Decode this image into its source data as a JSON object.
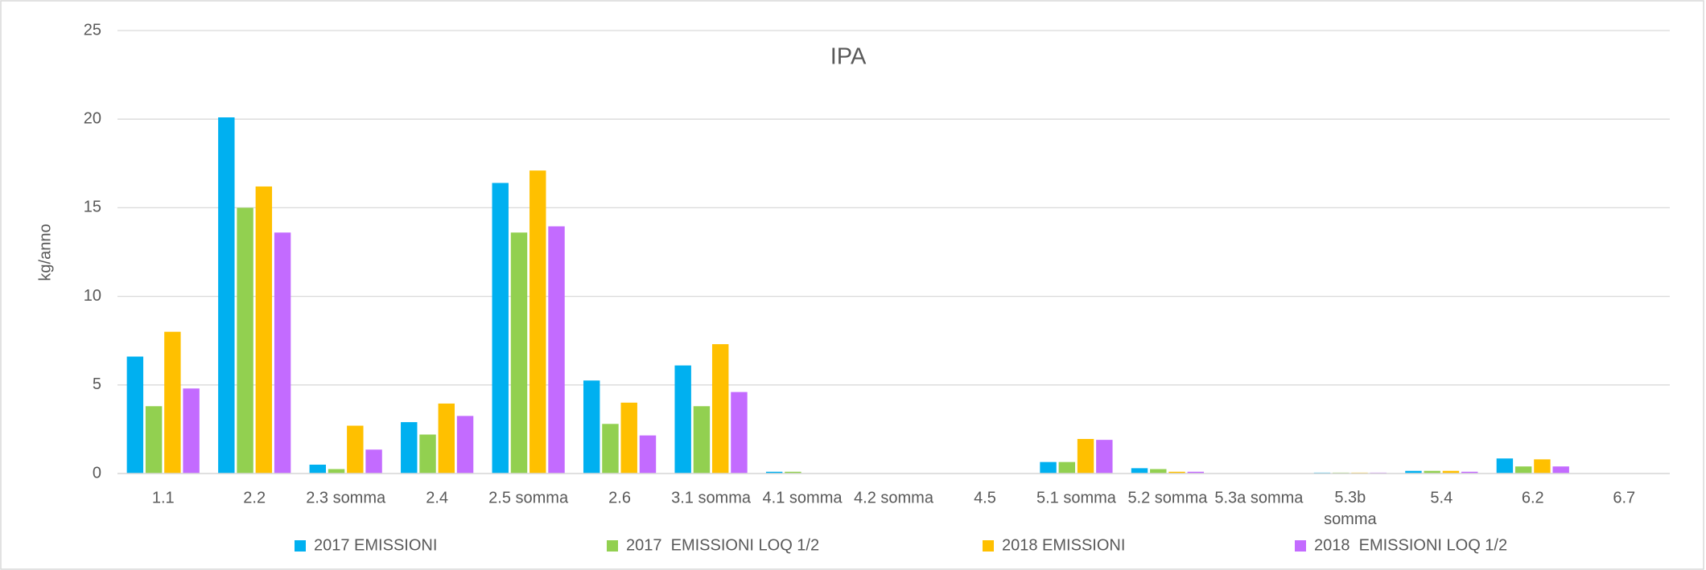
{
  "chart_data": {
    "type": "bar",
    "title": "IPA",
    "y_label": "kg/anno",
    "categories": [
      "1.1",
      "2.2",
      "2.3 somma",
      "2.4",
      "2.5 somma",
      "2.6",
      "3.1 somma",
      "4.1 somma",
      "4.2 somma",
      "4.5",
      "5.1 somma",
      "5.2 somma",
      "5.3a somma",
      "5.3b\nsomma",
      "5.4",
      "6.2",
      "6.7"
    ],
    "series": [
      {
        "name": "2017 EMISSIONI",
        "color": "#00b0f0",
        "values": [
          6.6,
          20.1,
          0.5,
          2.9,
          16.4,
          5.25,
          6.1,
          0.1,
          0,
          0,
          0.65,
          0.3,
          0,
          0.05,
          0.15,
          0.85,
          0
        ]
      },
      {
        "name": "2017  EMISSIONI LOQ 1/2",
        "color": "#92d050",
        "values": [
          3.8,
          15.0,
          0.25,
          2.2,
          13.6,
          2.8,
          3.8,
          0.1,
          0,
          0,
          0.65,
          0.25,
          0,
          0.05,
          0.15,
          0.4,
          0
        ]
      },
      {
        "name": "2018 EMISSIONI",
        "color": "#ffc000",
        "values": [
          8.0,
          16.2,
          2.7,
          3.95,
          17.1,
          4.0,
          7.3,
          0,
          0,
          0,
          1.95,
          0.1,
          0,
          0.05,
          0.15,
          0.8,
          0
        ]
      },
      {
        "name": "2018  EMISSIONI LOQ 1/2",
        "color": "#c36bff",
        "values": [
          4.8,
          13.6,
          1.35,
          3.25,
          13.95,
          2.15,
          4.6,
          0,
          0,
          0,
          1.9,
          0.1,
          0,
          0.05,
          0.1,
          0.4,
          0
        ]
      }
    ],
    "ylim": [
      0,
      25
    ],
    "yticks": [
      0,
      5,
      10,
      15,
      20,
      25
    ],
    "grid": true,
    "legend": "bottom"
  }
}
